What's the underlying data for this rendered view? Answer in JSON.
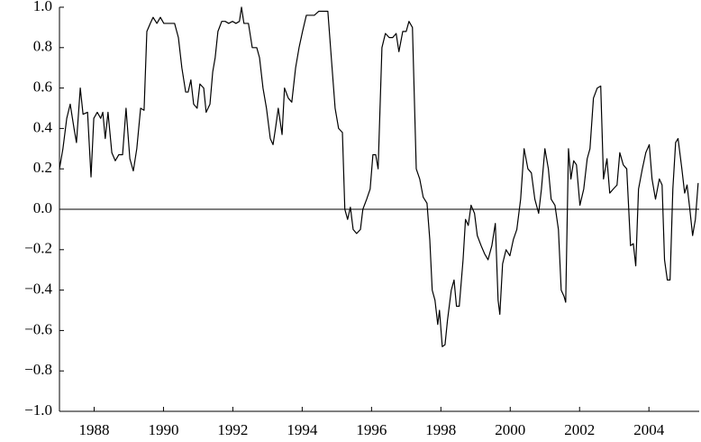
{
  "chart_data": {
    "type": "line",
    "x": [
      1987.0,
      1987.1,
      1987.21,
      1987.31,
      1987.42,
      1987.49,
      1987.6,
      1987.68,
      1987.81,
      1987.91,
      1987.99,
      1988.09,
      1988.19,
      1988.25,
      1988.32,
      1988.4,
      1988.51,
      1988.61,
      1988.71,
      1988.82,
      1988.92,
      1989.03,
      1989.13,
      1989.23,
      1989.34,
      1989.44,
      1989.52,
      1989.62,
      1989.7,
      1989.81,
      1989.91,
      1990.01,
      1990.12,
      1990.22,
      1990.32,
      1990.43,
      1990.53,
      1990.64,
      1990.71,
      1990.79,
      1990.87,
      1990.97,
      1991.05,
      1991.16,
      1991.23,
      1991.34,
      1991.42,
      1991.49,
      1991.57,
      1991.68,
      1991.78,
      1991.88,
      1991.99,
      1992.09,
      1992.19,
      1992.25,
      1992.32,
      1992.45,
      1992.56,
      1992.69,
      1992.77,
      1992.87,
      1992.97,
      1993.08,
      1993.16,
      1993.23,
      1993.31,
      1993.42,
      1993.49,
      1993.6,
      1993.7,
      1993.81,
      1993.91,
      1994.01,
      1994.12,
      1994.22,
      1994.35,
      1994.48,
      1994.64,
      1994.74,
      1994.84,
      1994.95,
      1995.05,
      1995.16,
      1995.23,
      1995.31,
      1995.39,
      1995.47,
      1995.57,
      1995.68,
      1995.75,
      1995.86,
      1995.96,
      1996.04,
      1996.12,
      1996.19,
      1996.3,
      1996.4,
      1996.51,
      1996.61,
      1996.71,
      1996.79,
      1996.9,
      1997.0,
      1997.08,
      1997.18,
      1997.29,
      1997.39,
      1997.49,
      1997.6,
      1997.68,
      1997.75,
      1997.83,
      1997.91,
      1997.96,
      1998.04,
      1998.12,
      1998.19,
      1998.3,
      1998.38,
      1998.45,
      1998.53,
      1998.64,
      1998.71,
      1998.79,
      1998.87,
      1998.97,
      1999.05,
      1999.16,
      1999.26,
      1999.36,
      1999.47,
      1999.57,
      1999.65,
      1999.7,
      1999.78,
      1999.88,
      1999.99,
      2000.09,
      2000.19,
      2000.3,
      2000.4,
      2000.51,
      2000.61,
      2000.71,
      2000.82,
      2000.9,
      2001.0,
      2001.1,
      2001.18,
      2001.29,
      2001.39,
      2001.47,
      2001.55,
      2001.6,
      2001.68,
      2001.75,
      2001.83,
      2001.91,
      2002.01,
      2002.12,
      2002.22,
      2002.3,
      2002.4,
      2002.51,
      2002.61,
      2002.69,
      2002.79,
      2002.87,
      2002.97,
      2003.08,
      2003.16,
      2003.26,
      2003.36,
      2003.47,
      2003.55,
      2003.62,
      2003.7,
      2003.81,
      2003.91,
      2004.01,
      2004.09,
      2004.19,
      2004.3,
      2004.38,
      2004.45,
      2004.53,
      2004.61,
      2004.69,
      2004.77,
      2004.84,
      2004.95,
      2005.03,
      2005.1,
      2005.18,
      2005.26,
      2005.34,
      2005.42
    ],
    "values": [
      0.2,
      0.3,
      0.45,
      0.52,
      0.4,
      0.33,
      0.6,
      0.47,
      0.48,
      0.16,
      0.45,
      0.48,
      0.45,
      0.48,
      0.35,
      0.48,
      0.28,
      0.24,
      0.27,
      0.27,
      0.5,
      0.25,
      0.19,
      0.3,
      0.5,
      0.49,
      0.88,
      0.92,
      0.95,
      0.92,
      0.95,
      0.92,
      0.92,
      0.92,
      0.92,
      0.85,
      0.7,
      0.58,
      0.58,
      0.64,
      0.52,
      0.5,
      0.62,
      0.6,
      0.48,
      0.52,
      0.68,
      0.75,
      0.88,
      0.93,
      0.93,
      0.92,
      0.93,
      0.92,
      0.93,
      1.0,
      0.92,
      0.92,
      0.8,
      0.8,
      0.75,
      0.6,
      0.5,
      0.35,
      0.32,
      0.4,
      0.5,
      0.37,
      0.6,
      0.55,
      0.53,
      0.7,
      0.8,
      0.88,
      0.96,
      0.96,
      0.96,
      0.98,
      0.98,
      0.98,
      0.75,
      0.5,
      0.4,
      0.38,
      0.0,
      -0.05,
      0.01,
      -0.1,
      -0.12,
      -0.1,
      0.0,
      0.05,
      0.1,
      0.27,
      0.27,
      0.2,
      0.8,
      0.87,
      0.85,
      0.85,
      0.87,
      0.78,
      0.88,
      0.88,
      0.93,
      0.9,
      0.2,
      0.15,
      0.06,
      0.03,
      -0.15,
      -0.4,
      -0.45,
      -0.57,
      -0.5,
      -0.68,
      -0.67,
      -0.55,
      -0.4,
      -0.35,
      -0.48,
      -0.48,
      -0.25,
      -0.05,
      -0.08,
      0.02,
      -0.02,
      -0.13,
      -0.18,
      -0.22,
      -0.25,
      -0.18,
      -0.07,
      -0.45,
      -0.52,
      -0.27,
      -0.2,
      -0.23,
      -0.15,
      -0.1,
      0.05,
      0.3,
      0.2,
      0.18,
      0.05,
      -0.02,
      0.1,
      0.3,
      0.2,
      0.05,
      0.02,
      -0.1,
      -0.4,
      -0.43,
      -0.46,
      0.3,
      0.15,
      0.24,
      0.22,
      0.02,
      0.1,
      0.25,
      0.3,
      0.55,
      0.6,
      0.61,
      0.15,
      0.25,
      0.08,
      0.1,
      0.12,
      0.28,
      0.22,
      0.2,
      -0.18,
      -0.17,
      -0.28,
      0.1,
      0.2,
      0.28,
      0.32,
      0.15,
      0.05,
      0.15,
      0.12,
      -0.25,
      -0.35,
      -0.35,
      0.1,
      0.33,
      0.35,
      0.2,
      0.08,
      0.12,
      0.0,
      -0.13,
      -0.05,
      0.13
    ],
    "color": "#000000",
    "xlim": [
      1987,
      2005.45
    ],
    "xticks": [
      1988,
      1990,
      1992,
      1994,
      1996,
      1998,
      2000,
      2002,
      2004
    ],
    "ylim": [
      -1,
      1
    ],
    "yticks": [
      {
        "value": -1,
        "label": "−1.0"
      },
      {
        "value": -0.8,
        "label": "−0.8"
      },
      {
        "value": -0.6,
        "label": "−0.6"
      },
      {
        "value": -0.4,
        "label": "−0.4"
      },
      {
        "value": -0.2,
        "label": "−0.2"
      },
      {
        "value": 0,
        "label": "0.0"
      },
      {
        "value": 0.2,
        "label": "0.2"
      },
      {
        "value": 0.4,
        "label": "0.4"
      },
      {
        "value": 0.6,
        "label": "0.6"
      },
      {
        "value": 0.8,
        "label": "0.8"
      },
      {
        "value": 1,
        "label": "1.0"
      }
    ],
    "zero_line": true
  }
}
